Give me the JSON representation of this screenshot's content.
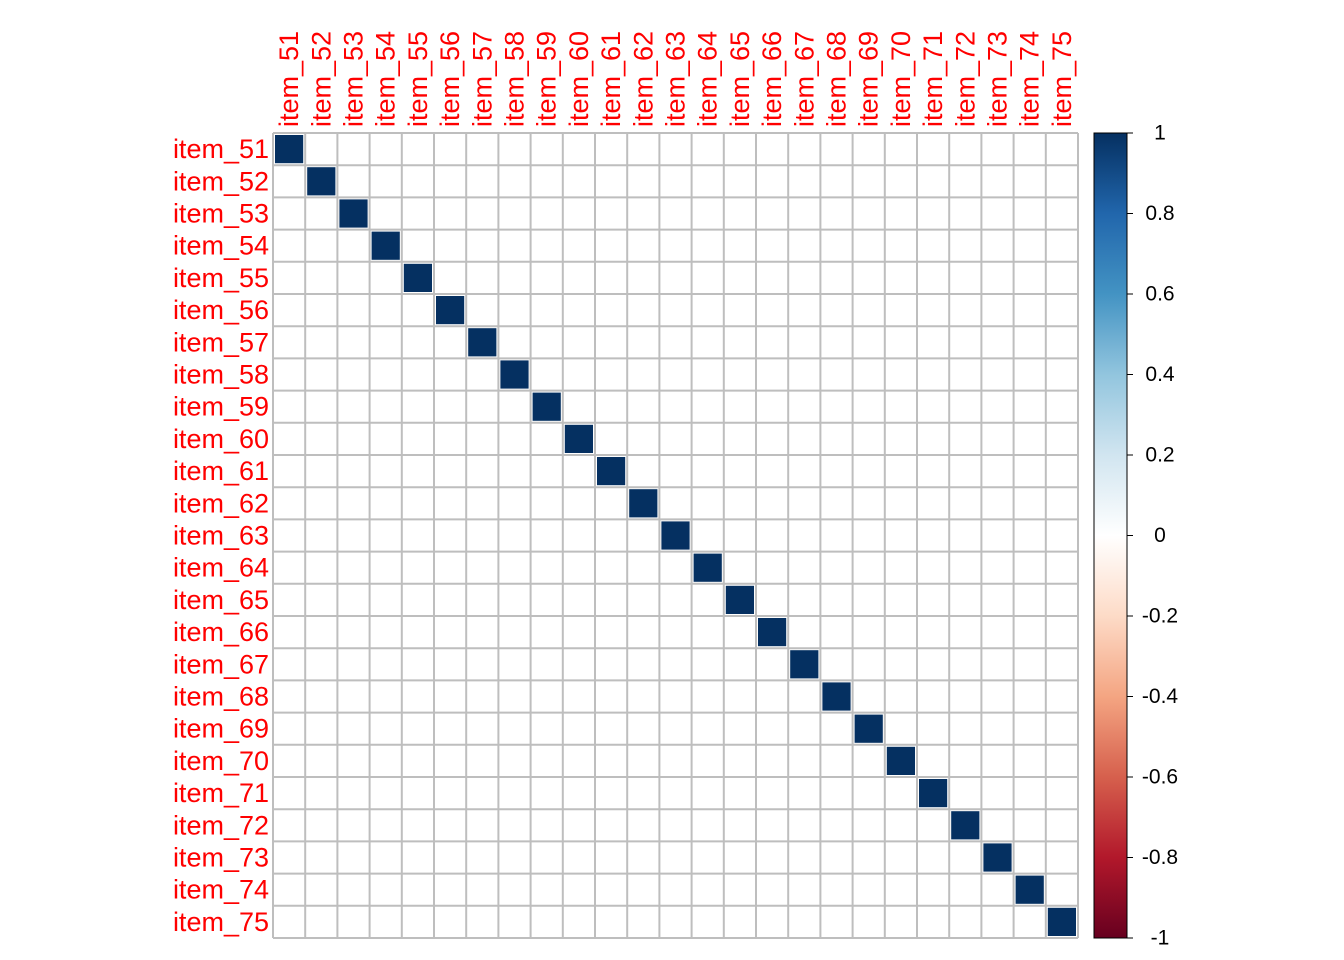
{
  "chart_data": {
    "type": "heatmap",
    "title": "",
    "variables": [
      "item_51",
      "item_52",
      "item_53",
      "item_54",
      "item_55",
      "item_56",
      "item_57",
      "item_58",
      "item_59",
      "item_60",
      "item_61",
      "item_62",
      "item_63",
      "item_64",
      "item_65",
      "item_66",
      "item_67",
      "item_68",
      "item_69",
      "item_70",
      "item_71",
      "item_72",
      "item_73",
      "item_74",
      "item_75"
    ],
    "diagonal_value": 1,
    "off_diagonal_value": 0,
    "label_color": "#ff0000",
    "grid_color": "#bebebe",
    "colorbar": {
      "range": [
        -1,
        1
      ],
      "tick_labels": [
        "1",
        "0.8",
        "0.6",
        "0.4",
        "0.2",
        "0",
        "-0.2",
        "-0.4",
        "-0.6",
        "-0.8",
        "-1"
      ],
      "tick_values": [
        1,
        0.8,
        0.6,
        0.4,
        0.2,
        0,
        -0.2,
        -0.4,
        -0.6,
        -0.8,
        -1
      ],
      "colors": [
        "#67001f",
        "#b2182b",
        "#d6604d",
        "#f4a582",
        "#fddbc7",
        "#ffffff",
        "#d1e5f0",
        "#92c5de",
        "#4393c3",
        "#2166ac",
        "#053061"
      ],
      "placement": "right"
    }
  }
}
